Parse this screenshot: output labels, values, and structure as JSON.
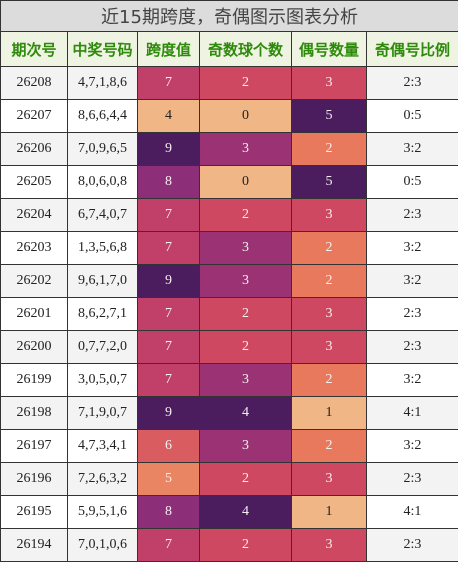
{
  "title": "近15期跨度，奇偶图示图表分析",
  "table": {
    "columns": [
      "期次号",
      "中奖号码",
      "跨度值",
      "奇数球个数",
      "偶号数量",
      "奇偶号比例"
    ],
    "rows": [
      [
        "26208",
        "4,7,1,8,6",
        7,
        2,
        3,
        "2:3"
      ],
      [
        "26207",
        "8,6,6,4,4",
        4,
        0,
        5,
        "0:5"
      ],
      [
        "26206",
        "7,0,9,6,5",
        9,
        3,
        2,
        "3:2"
      ],
      [
        "26205",
        "8,0,6,0,8",
        8,
        0,
        5,
        "0:5"
      ],
      [
        "26204",
        "6,7,4,0,7",
        7,
        2,
        3,
        "2:3"
      ],
      [
        "26203",
        "1,3,5,6,8",
        7,
        3,
        2,
        "3:2"
      ],
      [
        "26202",
        "9,6,1,7,0",
        9,
        3,
        2,
        "3:2"
      ],
      [
        "26201",
        "8,6,2,7,1",
        7,
        2,
        3,
        "2:3"
      ],
      [
        "26200",
        "0,7,7,2,0",
        7,
        2,
        3,
        "2:3"
      ],
      [
        "26199",
        "3,0,5,0,7",
        7,
        3,
        2,
        "3:2"
      ],
      [
        "26198",
        "7,1,9,0,7",
        9,
        4,
        1,
        "4:1"
      ],
      [
        "26197",
        "4,7,3,4,1",
        6,
        3,
        2,
        "3:2"
      ],
      [
        "26196",
        "7,2,6,3,2",
        5,
        2,
        3,
        "2:3"
      ],
      [
        "26195",
        "5,9,5,1,6",
        8,
        4,
        1,
        "4:1"
      ],
      [
        "26194",
        "7,0,1,0,6",
        7,
        2,
        3,
        "2:3"
      ]
    ]
  }
}
